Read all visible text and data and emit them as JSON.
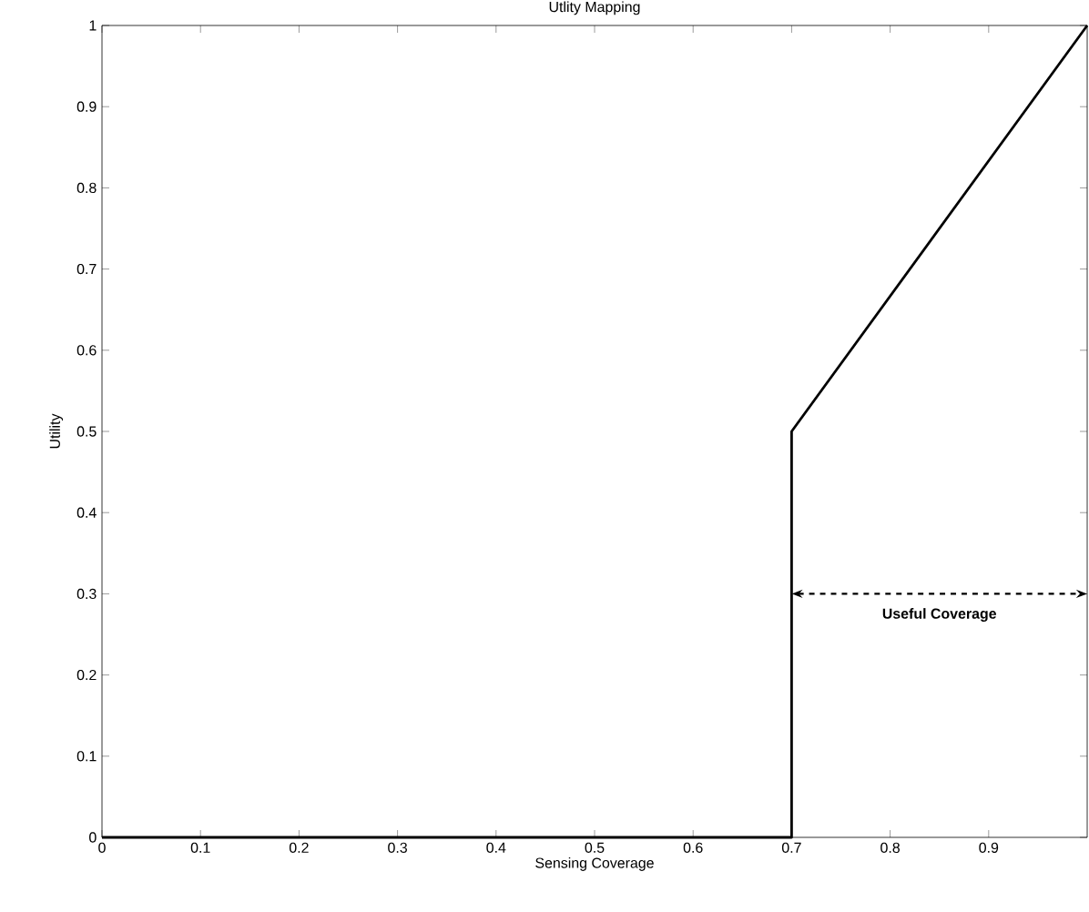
{
  "chart_data": {
    "type": "line",
    "title": "Utlity Mapping",
    "xlabel": "Sensing Coverage",
    "ylabel": "Utility",
    "x": [
      0,
      0.7,
      0.7,
      1
    ],
    "series": [
      {
        "color": "#000000",
        "values": [
          0,
          0,
          0.5,
          1
        ]
      }
    ],
    "xlim": [
      0,
      1
    ],
    "ylim": [
      0,
      1
    ],
    "xticks": [
      0,
      0.1,
      0.2,
      0.3,
      0.4,
      0.5,
      0.6,
      0.7,
      0.8,
      0.9
    ],
    "yticks": [
      0,
      0.1,
      0.2,
      0.3,
      0.4,
      0.5,
      0.6,
      0.7,
      0.8,
      0.9,
      1
    ],
    "annotations": [
      "Useful Coverage"
    ],
    "grid": false,
    "marker": "none",
    "line_style": "solid"
  }
}
